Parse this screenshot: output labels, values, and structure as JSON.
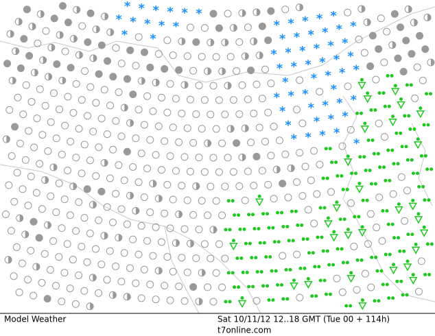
{
  "footer": {
    "product": "Model Weather",
    "valid_time": "Sat 10/11/12 12..18 GMT (Tue 00 + 114h)",
    "site": "t7online.com"
  }
}
